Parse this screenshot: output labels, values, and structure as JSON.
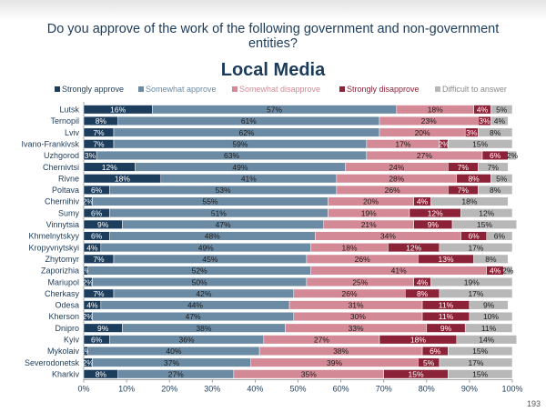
{
  "header": {
    "question": "Do you approve of the work of the following government and non-government entities?",
    "subtitle": "Local Media"
  },
  "page_number": "193",
  "colors": {
    "Strongly approve": "#1c3d5c",
    "Somewhat approve": "#6b8aa3",
    "Somewhat disapprove": "#d48a96",
    "Strongly disapprove": "#8c2238",
    "Difficult to answer": "#b8b8b8"
  },
  "chart_data": {
    "type": "bar",
    "orientation": "horizontal",
    "stacked": true,
    "title": "Local Media",
    "xlim": [
      0,
      100
    ],
    "x_ticks": [
      "0%",
      "10%",
      "20%",
      "30%",
      "40%",
      "50%",
      "60%",
      "70%",
      "80%",
      "90%",
      "100%"
    ],
    "legend_position": "top",
    "categories": [
      "Lutsk",
      "Ternopil",
      "Lviv",
      "Ivano-Frankivsk",
      "Uzhgorod",
      "Chernivtsi",
      "Rivne",
      "Poltava",
      "Chernihiv",
      "Sumy",
      "Vinnytsia",
      "Khmelnytskyy",
      "Kropyvnytskyi",
      "Zhytomyr",
      "Zaporizhia",
      "Mariupol",
      "Cherkasy",
      "Odesa",
      "Kherson",
      "Dnipro",
      "Kyiv",
      "Mykolaiv",
      "Severodonetsk",
      "Kharkiv"
    ],
    "series": [
      {
        "name": "Strongly approve",
        "values": [
          16,
          8,
          7,
          7,
          3,
          12,
          18,
          6,
          2,
          6,
          9,
          6,
          4,
          7,
          1,
          2,
          7,
          4,
          2,
          9,
          6,
          1,
          2,
          8
        ]
      },
      {
        "name": "Somewhat approve",
        "values": [
          57,
          61,
          62,
          59,
          63,
          49,
          41,
          53,
          55,
          51,
          47,
          48,
          49,
          45,
          52,
          50,
          42,
          44,
          47,
          38,
          36,
          40,
          37,
          27
        ]
      },
      {
        "name": "Somewhat disapprove",
        "values": [
          18,
          23,
          20,
          17,
          27,
          24,
          28,
          26,
          20,
          19,
          21,
          34,
          18,
          26,
          41,
          25,
          26,
          31,
          30,
          33,
          27,
          38,
          39,
          35
        ]
      },
      {
        "name": "Strongly disapprove",
        "values": [
          4,
          3,
          3,
          2,
          6,
          7,
          8,
          7,
          4,
          12,
          9,
          6,
          12,
          13,
          4,
          4,
          8,
          11,
          11,
          9,
          18,
          6,
          5,
          15
        ]
      },
      {
        "name": "Difficult to answer",
        "values": [
          5,
          4,
          8,
          15,
          2,
          7,
          5,
          8,
          18,
          12,
          15,
          6,
          17,
          8,
          2,
          19,
          17,
          9,
          10,
          11,
          14,
          15,
          17,
          15
        ]
      }
    ]
  }
}
